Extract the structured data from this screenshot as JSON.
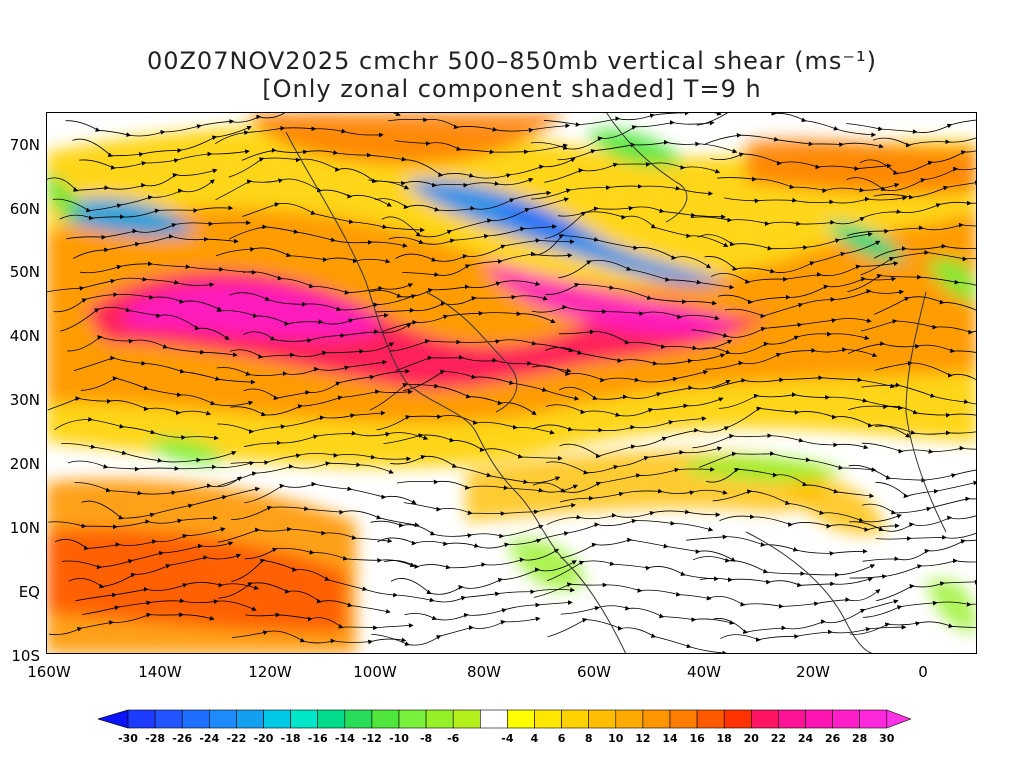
{
  "title": "00Z07NOV2025 cmchr 500–850mb vertical shear (ms⁻¹)",
  "subtitle": "[Only zonal component shaded] T=9 h",
  "lat_labels": [
    "70N",
    "60N",
    "50N",
    "40N",
    "30N",
    "20N",
    "10N",
    "EQ",
    "10S"
  ],
  "lon_labels": [
    "160W",
    "140W",
    "120W",
    "100W",
    "80W",
    "60W",
    "40W",
    "20W",
    "0"
  ],
  "map_extent": {
    "lon_min": -160,
    "lon_max": 10,
    "lat_min": -10,
    "lat_max": 75
  },
  "colorbar": {
    "labels": [
      "-30",
      "-28",
      "-26",
      "-24",
      "-22",
      "-20",
      "-18",
      "-16",
      "-14",
      "-12",
      "-10",
      "-8",
      "-6",
      "-4",
      "4",
      "6",
      "8",
      "10",
      "12",
      "14",
      "16",
      "18",
      "20",
      "22",
      "24",
      "26",
      "28",
      "30"
    ],
    "colors": [
      "#1e3cff",
      "#2355ff",
      "#1e6eff",
      "#1e8cff",
      "#14a0f0",
      "#00c8e6",
      "#00e6c8",
      "#00dc8c",
      "#28dc5a",
      "#50e63c",
      "#78f03c",
      "#96f028",
      "#b4f01e",
      "#ffffff",
      "#ffff00",
      "#ffe600",
      "#ffd200",
      "#ffbe00",
      "#ffaa00",
      "#ff9600",
      "#ff7d00",
      "#ff5a00",
      "#ff3200",
      "#ff1464",
      "#ff1496",
      "#ff14b4",
      "#ff1ec8",
      "#ff28dc"
    ]
  }
}
